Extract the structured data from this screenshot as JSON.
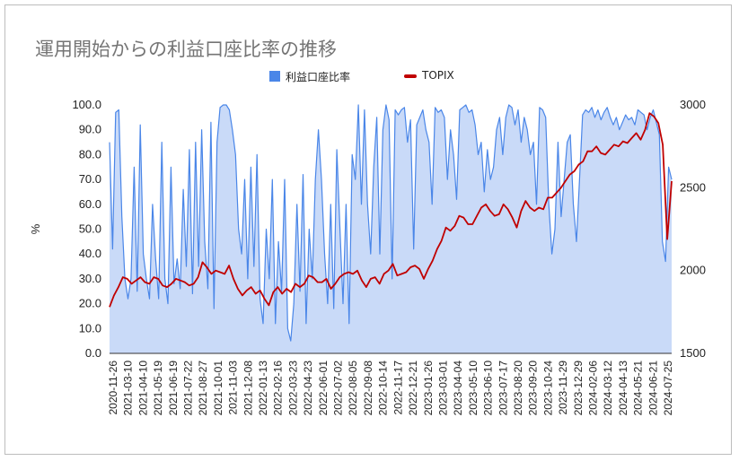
{
  "chart_data": {
    "type": "line",
    "title": "運用開始からの利益口座比率の推移",
    "ylabel": "%",
    "ylim": [
      0,
      100
    ],
    "y2lim": [
      1500,
      3000
    ],
    "yticks": [
      "100.0",
      "90.0",
      "80.0",
      "70.0",
      "60.0",
      "50.0",
      "40.0",
      "30.0",
      "20.0",
      "10.0",
      "0.0"
    ],
    "y2ticks": [
      "3000",
      "2500",
      "2000",
      "1500"
    ],
    "legend_position": "top",
    "grid": false,
    "x_labels": [
      "2020-11-26",
      "2021-03-10",
      "2021-04-10",
      "2021-05-19",
      "2021-06-19",
      "2021-07-22",
      "2021-08-27",
      "2021-10-01",
      "2021-11-03",
      "2021-12-08",
      "2022-01-13",
      "2022-02-16",
      "2022-03-23",
      "2022-04-23",
      "2022-06-01",
      "2022-07-02",
      "2022-08-05",
      "2022-09-08",
      "2022-10-14",
      "2022-11-17",
      "2022-12-21",
      "2023-01-26",
      "2023-03-01",
      "2023-04-04",
      "2023-05-10",
      "2023-06-10",
      "2023-07-17",
      "2023-08-20",
      "2023-09-20",
      "2023-10-24",
      "2023-11-29",
      "2023-12-29",
      "2024-02-06",
      "2024-03-12",
      "2024-04-13",
      "2024-05-21",
      "2024-06-21",
      "2024-07-25"
    ],
    "series": [
      {
        "name": "利益口座比率",
        "type": "area",
        "axis": "left",
        "color": "#4a86e8",
        "fill": "#c9daf8",
        "values": [
          85,
          42,
          97,
          98,
          55,
          30,
          22,
          30,
          75,
          25,
          92,
          40,
          30,
          22,
          60,
          38,
          22,
          85,
          30,
          20,
          75,
          28,
          38,
          26,
          66,
          35,
          82,
          24,
          85,
          35,
          90,
          45,
          26,
          93,
          18,
          85,
          99,
          100,
          100,
          98,
          90,
          80,
          50,
          40,
          70,
          30,
          75,
          35,
          80,
          22,
          12,
          50,
          30,
          70,
          12,
          45,
          25,
          70,
          10,
          5,
          20,
          60,
          25,
          72,
          12,
          50,
          30,
          70,
          90,
          70,
          40,
          20,
          60,
          18,
          82,
          50,
          20,
          60,
          12,
          80,
          70,
          100,
          60,
          98,
          60,
          40,
          75,
          95,
          40,
          90,
          100,
          94,
          30,
          98,
          96,
          98,
          99,
          85,
          94,
          42,
          92,
          95,
          98,
          90,
          85,
          60,
          99,
          97,
          98,
          95,
          70,
          90,
          80,
          62,
          98,
          99,
          100,
          97,
          98,
          92,
          80,
          85,
          65,
          82,
          70,
          75,
          90,
          95,
          80,
          95,
          100,
          99,
          92,
          98,
          85,
          95,
          90,
          80,
          85,
          60,
          99,
          98,
          95,
          60,
          40,
          50,
          85,
          55,
          70,
          85,
          88,
          60,
          45,
          70,
          96,
          98,
          97,
          99,
          95,
          98,
          94,
          97,
          99,
          95,
          92,
          95,
          90,
          93,
          96,
          94,
          95,
          92,
          98,
          97,
          96,
          90,
          95,
          98,
          93,
          88,
          45,
          37,
          75,
          70
        ]
      },
      {
        "name": "TOPIX",
        "type": "line",
        "axis": "right",
        "color": "#c00000",
        "values": [
          1780,
          1850,
          1900,
          1960,
          1950,
          1920,
          1940,
          1960,
          1930,
          1920,
          1960,
          1950,
          1910,
          1900,
          1920,
          1950,
          1940,
          1930,
          1910,
          1920,
          1960,
          2050,
          2020,
          1980,
          2000,
          1990,
          1980,
          2030,
          1950,
          1890,
          1850,
          1880,
          1900,
          1860,
          1880,
          1830,
          1790,
          1870,
          1900,
          1860,
          1890,
          1870,
          1920,
          1900,
          1920,
          1970,
          1960,
          1930,
          1930,
          1950,
          1890,
          1920,
          1960,
          1980,
          1990,
          1980,
          2000,
          1940,
          1900,
          1950,
          1960,
          1920,
          1980,
          2000,
          2040,
          1970,
          1980,
          1990,
          2020,
          2030,
          2010,
          1950,
          2010,
          2060,
          2130,
          2180,
          2260,
          2240,
          2270,
          2330,
          2320,
          2280,
          2280,
          2330,
          2380,
          2400,
          2360,
          2330,
          2340,
          2400,
          2370,
          2320,
          2260,
          2360,
          2420,
          2380,
          2360,
          2380,
          2370,
          2440,
          2440,
          2470,
          2500,
          2540,
          2580,
          2600,
          2640,
          2660,
          2720,
          2720,
          2750,
          2710,
          2700,
          2730,
          2760,
          2750,
          2780,
          2770,
          2800,
          2830,
          2790,
          2850,
          2950,
          2930,
          2890,
          2760,
          2190,
          2540
        ]
      }
    ]
  },
  "legend_items": [
    "利益口座比率",
    "TOPIX"
  ]
}
